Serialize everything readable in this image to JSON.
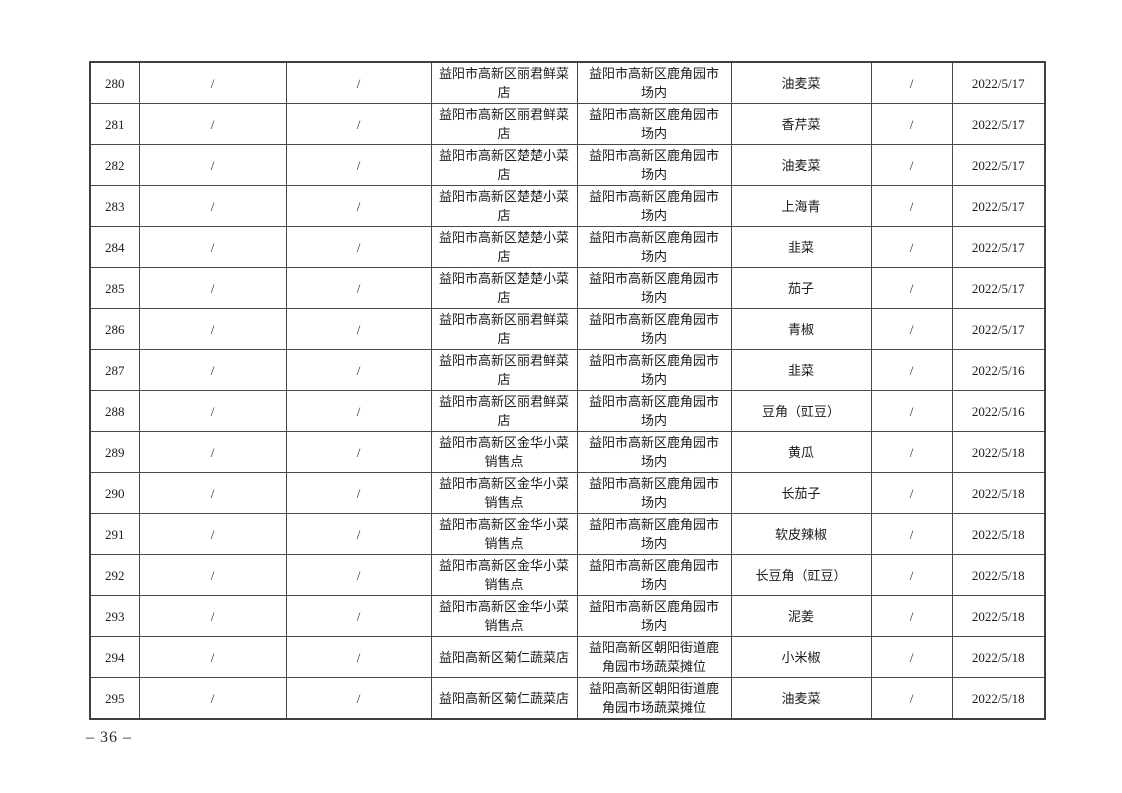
{
  "page": {
    "number_label": "– 36 –"
  },
  "table": {
    "rows": [
      {
        "cells": [
          "280",
          "/",
          "/",
          "益阳市高新区丽君鲜菜店",
          "益阳市高新区鹿角园市场内",
          "油麦菜",
          "/",
          "2022/5/17"
        ]
      },
      {
        "cells": [
          "281",
          "/",
          "/",
          "益阳市高新区丽君鲜菜店",
          "益阳市高新区鹿角园市场内",
          "香芹菜",
          "/",
          "2022/5/17"
        ]
      },
      {
        "cells": [
          "282",
          "/",
          "/",
          "益阳市高新区楚楚小菜店",
          "益阳市高新区鹿角园市场内",
          "油麦菜",
          "/",
          "2022/5/17"
        ]
      },
      {
        "cells": [
          "283",
          "/",
          "/",
          "益阳市高新区楚楚小菜店",
          "益阳市高新区鹿角园市场内",
          "上海青",
          "/",
          "2022/5/17"
        ]
      },
      {
        "cells": [
          "284",
          "/",
          "/",
          "益阳市高新区楚楚小菜店",
          "益阳市高新区鹿角园市场内",
          "韭菜",
          "/",
          "2022/5/17"
        ]
      },
      {
        "cells": [
          "285",
          "/",
          "/",
          "益阳市高新区楚楚小菜店",
          "益阳市高新区鹿角园市场内",
          "茄子",
          "/",
          "2022/5/17"
        ]
      },
      {
        "cells": [
          "286",
          "/",
          "/",
          "益阳市高新区丽君鲜菜店",
          "益阳市高新区鹿角园市场内",
          "青椒",
          "/",
          "2022/5/17"
        ]
      },
      {
        "cells": [
          "287",
          "/",
          "/",
          "益阳市高新区丽君鲜菜店",
          "益阳市高新区鹿角园市场内",
          "韭菜",
          "/",
          "2022/5/16"
        ]
      },
      {
        "cells": [
          "288",
          "/",
          "/",
          "益阳市高新区丽君鲜菜店",
          "益阳市高新区鹿角园市场内",
          "豆角（豇豆）",
          "/",
          "2022/5/16"
        ]
      },
      {
        "cells": [
          "289",
          "/",
          "/",
          "益阳市高新区金华小菜销售点",
          "益阳市高新区鹿角园市场内",
          "黄瓜",
          "/",
          "2022/5/18"
        ]
      },
      {
        "cells": [
          "290",
          "/",
          "/",
          "益阳市高新区金华小菜销售点",
          "益阳市高新区鹿角园市场内",
          "长茄子",
          "/",
          "2022/5/18"
        ]
      },
      {
        "cells": [
          "291",
          "/",
          "/",
          "益阳市高新区金华小菜销售点",
          "益阳市高新区鹿角园市场内",
          "软皮辣椒",
          "/",
          "2022/5/18"
        ]
      },
      {
        "cells": [
          "292",
          "/",
          "/",
          "益阳市高新区金华小菜销售点",
          "益阳市高新区鹿角园市场内",
          "长豆角（豇豆）",
          "/",
          "2022/5/18"
        ]
      },
      {
        "cells": [
          "293",
          "/",
          "/",
          "益阳市高新区金华小菜销售点",
          "益阳市高新区鹿角园市场内",
          "泥姜",
          "/",
          "2022/5/18"
        ]
      },
      {
        "cells": [
          "294",
          "/",
          "/",
          "益阳高新区菊仁蔬菜店",
          "益阳高新区朝阳街道鹿角园市场蔬菜摊位",
          "小米椒",
          "/",
          "2022/5/18"
        ]
      },
      {
        "cells": [
          "295",
          "/",
          "/",
          "益阳高新区菊仁蔬菜店",
          "益阳高新区朝阳街道鹿角园市场蔬菜摊位",
          "油麦菜",
          "/",
          "2022/5/18"
        ]
      }
    ]
  },
  "colors": {
    "page_background": "#ffffff",
    "table_border": "#4a4a4a",
    "text": "#1c1c1c"
  }
}
